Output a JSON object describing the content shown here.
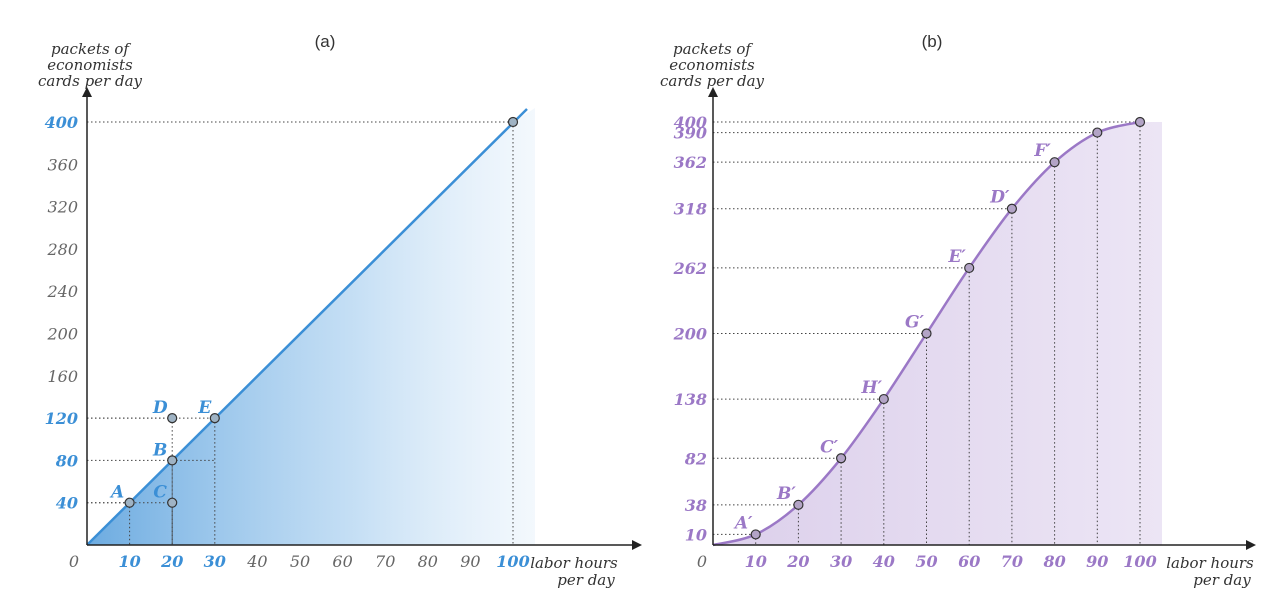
{
  "chart_data": [
    {
      "type": "line",
      "title": "(a)",
      "ylabel": [
        "packets of",
        "economists",
        "cards per day"
      ],
      "xlabel": [
        "labor hours",
        "per day"
      ],
      "origin_label": "0",
      "xlim": [
        0,
        100
      ],
      "ylim": [
        0,
        400
      ],
      "x_ticks": [
        10,
        20,
        30,
        40,
        50,
        60,
        70,
        80,
        90,
        100
      ],
      "y_ticks": [
        40,
        80,
        120,
        160,
        200,
        240,
        280,
        320,
        360,
        400
      ],
      "x_highlight_ticks": [
        10,
        20,
        30,
        100
      ],
      "y_highlight_ticks": [
        40,
        80,
        120,
        400
      ],
      "series": [
        {
          "x": [
            0,
            100
          ],
          "y": [
            0,
            400
          ]
        }
      ],
      "points": [
        {
          "label": "A",
          "x": 10,
          "y": 40
        },
        {
          "label": "B",
          "x": 20,
          "y": 80
        },
        {
          "label": "C",
          "x": 20,
          "y": 40
        },
        {
          "label": "D",
          "x": 20,
          "y": 120
        },
        {
          "label": "E",
          "x": 30,
          "y": 120
        },
        {
          "label": "",
          "x": 100,
          "y": 400
        }
      ],
      "color": "#3b8fd6"
    },
    {
      "type": "line",
      "title": "(b)",
      "ylabel": [
        "packets of",
        "economists",
        "cards per day"
      ],
      "xlabel": [
        "labor hours",
        "per day"
      ],
      "origin_label": "0",
      "xlim": [
        0,
        100
      ],
      "ylim": [
        0,
        400
      ],
      "x_ticks": [
        10,
        20,
        30,
        40,
        50,
        60,
        70,
        80,
        90,
        100
      ],
      "y_ticks": [
        10,
        38,
        82,
        138,
        200,
        262,
        318,
        362,
        390,
        400
      ],
      "series": [
        {
          "x": [
            0,
            10,
            20,
            30,
            40,
            50,
            60,
            70,
            80,
            90,
            100
          ],
          "y": [
            0,
            10,
            38,
            82,
            138,
            200,
            262,
            318,
            362,
            390,
            400
          ]
        }
      ],
      "points": [
        {
          "label": "A′",
          "x": 10,
          "y": 10
        },
        {
          "label": "B′",
          "x": 20,
          "y": 38
        },
        {
          "label": "C′",
          "x": 30,
          "y": 82
        },
        {
          "label": "H′",
          "x": 40,
          "y": 138
        },
        {
          "label": "G′",
          "x": 50,
          "y": 200
        },
        {
          "label": "E′",
          "x": 60,
          "y": 262
        },
        {
          "label": "D′",
          "x": 70,
          "y": 318
        },
        {
          "label": "F′",
          "x": 80,
          "y": 362
        },
        {
          "label": "",
          "x": 90,
          "y": 390
        },
        {
          "label": "",
          "x": 100,
          "y": 400
        }
      ],
      "color": "#9b78c6"
    }
  ]
}
